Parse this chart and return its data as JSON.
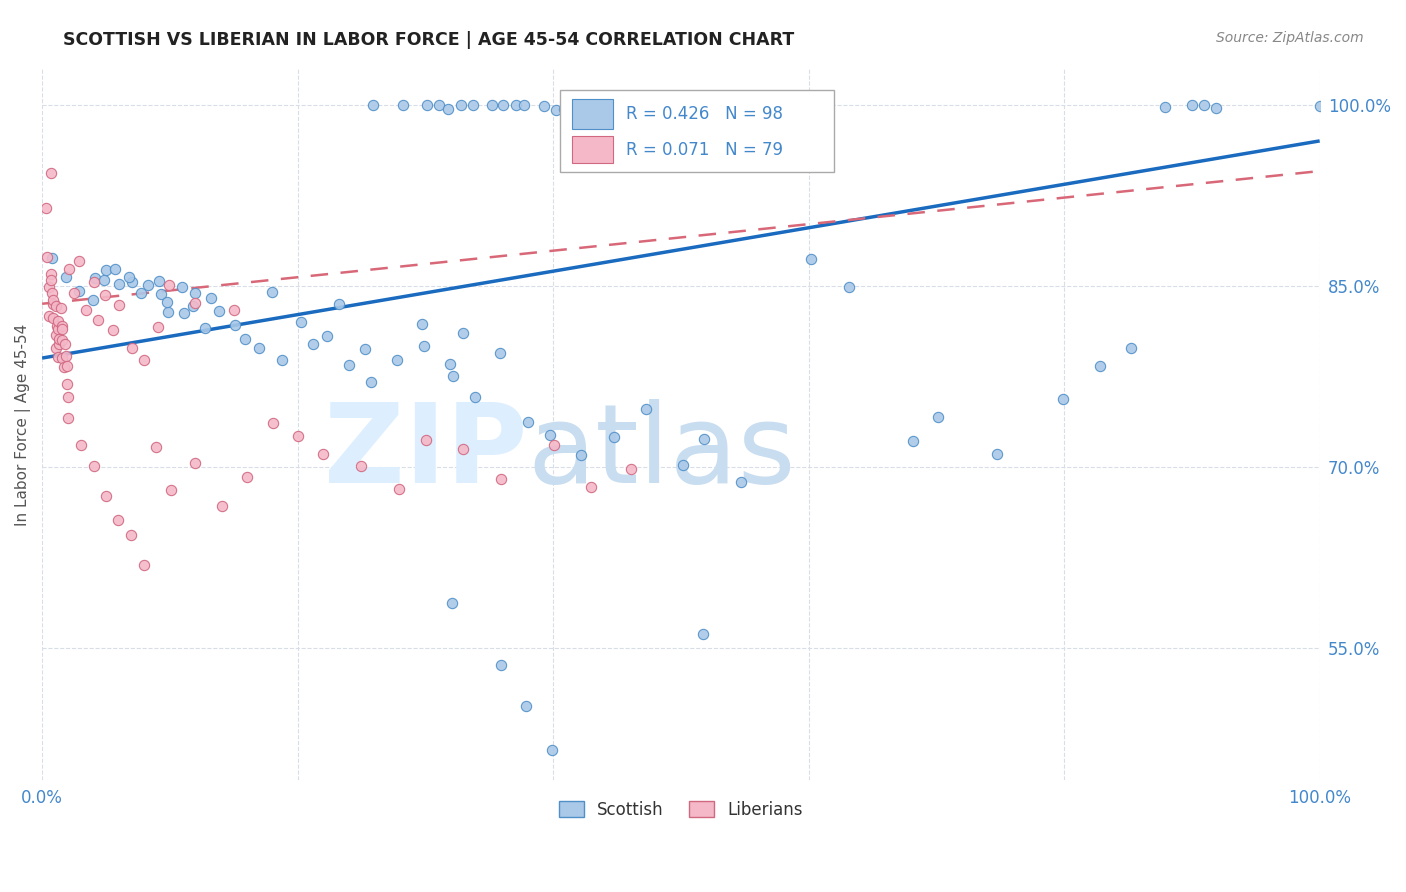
{
  "title": "SCOTTISH VS LIBERIAN IN LABOR FORCE | AGE 45-54 CORRELATION CHART",
  "source": "Source: ZipAtlas.com",
  "ylabel": "In Labor Force | Age 45-54",
  "xlim": [
    0.0,
    1.0
  ],
  "ylim": [
    0.44,
    1.03
  ],
  "x_ticks": [
    0.0,
    0.2,
    0.4,
    0.6,
    0.8,
    1.0
  ],
  "x_tick_labels": [
    "0.0%",
    "",
    "",
    "",
    "",
    "100.0%"
  ],
  "y_ticks": [
    0.55,
    0.7,
    0.85,
    1.0
  ],
  "y_tick_labels": [
    "55.0%",
    "70.0%",
    "85.0%",
    "100.0%"
  ],
  "legend_label1": "Scottish",
  "legend_label2": "Liberians",
  "r_scottish": 0.426,
  "n_scottish": 98,
  "r_liberian": 0.071,
  "n_liberian": 79,
  "color_scottish": "#aac8e8",
  "color_liberian": "#f4b8c8",
  "edge_scottish": "#5090c8",
  "edge_liberian": "#d06880",
  "trend_color_scottish": "#1a6bbf",
  "trend_color_liberian": "#d86878",
  "grid_color": "#d8dde8",
  "tick_color": "#4488cc",
  "title_color": "#222222",
  "source_color": "#888888",
  "watermark_zip_color": "#ddeeff",
  "watermark_atlas_color": "#c8ddf0"
}
